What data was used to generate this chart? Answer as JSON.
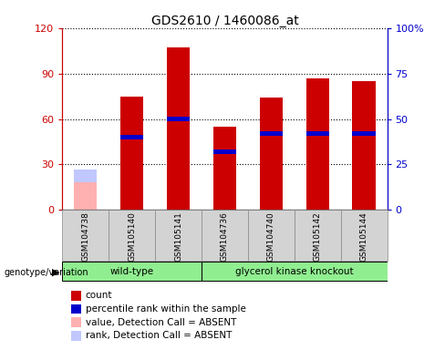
{
  "title": "GDS2610 / 1460086_at",
  "samples": [
    "GSM104738",
    "GSM105140",
    "GSM105141",
    "GSM104736",
    "GSM104740",
    "GSM105142",
    "GSM105144"
  ],
  "count_values": [
    0,
    75,
    107,
    55,
    74,
    87,
    85
  ],
  "percentile_values": [
    0,
    40,
    50,
    32,
    42,
    42,
    42
  ],
  "absent_count_val": 18,
  "absent_rank_val": 22,
  "absent_flags": [
    true,
    false,
    false,
    false,
    false,
    false,
    false
  ],
  "group_labels": [
    "wild-type",
    "glycerol kinase knockout"
  ],
  "group_ranges": [
    [
      0,
      3
    ],
    [
      3,
      7
    ]
  ],
  "ylim_left": [
    0,
    120
  ],
  "ylim_right": [
    0,
    100
  ],
  "yticks_left": [
    0,
    30,
    60,
    90,
    120
  ],
  "yticks_right": [
    0,
    25,
    50,
    75,
    100
  ],
  "ytick_labels_left": [
    "0",
    "30",
    "60",
    "90",
    "120"
  ],
  "ytick_labels_right": [
    "0",
    "25",
    "50",
    "75",
    "100%"
  ],
  "bar_color_count": "#cc0000",
  "bar_color_percentile": "#0000cc",
  "bar_color_absent_count": "#ffb0b0",
  "bar_color_absent_rank": "#c0c8ff",
  "bar_width": 0.5,
  "legend_items": [
    {
      "label": "count",
      "color": "#cc0000"
    },
    {
      "label": "percentile rank within the sample",
      "color": "#0000cc"
    },
    {
      "label": "value, Detection Call = ABSENT",
      "color": "#ffb0b0"
    },
    {
      "label": "rank, Detection Call = ABSENT",
      "color": "#c0c8ff"
    }
  ],
  "left_axis_color": "#cc0000",
  "right_axis_color": "#0000cc",
  "background_color": "#ffffff",
  "genotype_label": "genotype/variation",
  "figsize": [
    4.88,
    3.84
  ],
  "dpi": 100
}
